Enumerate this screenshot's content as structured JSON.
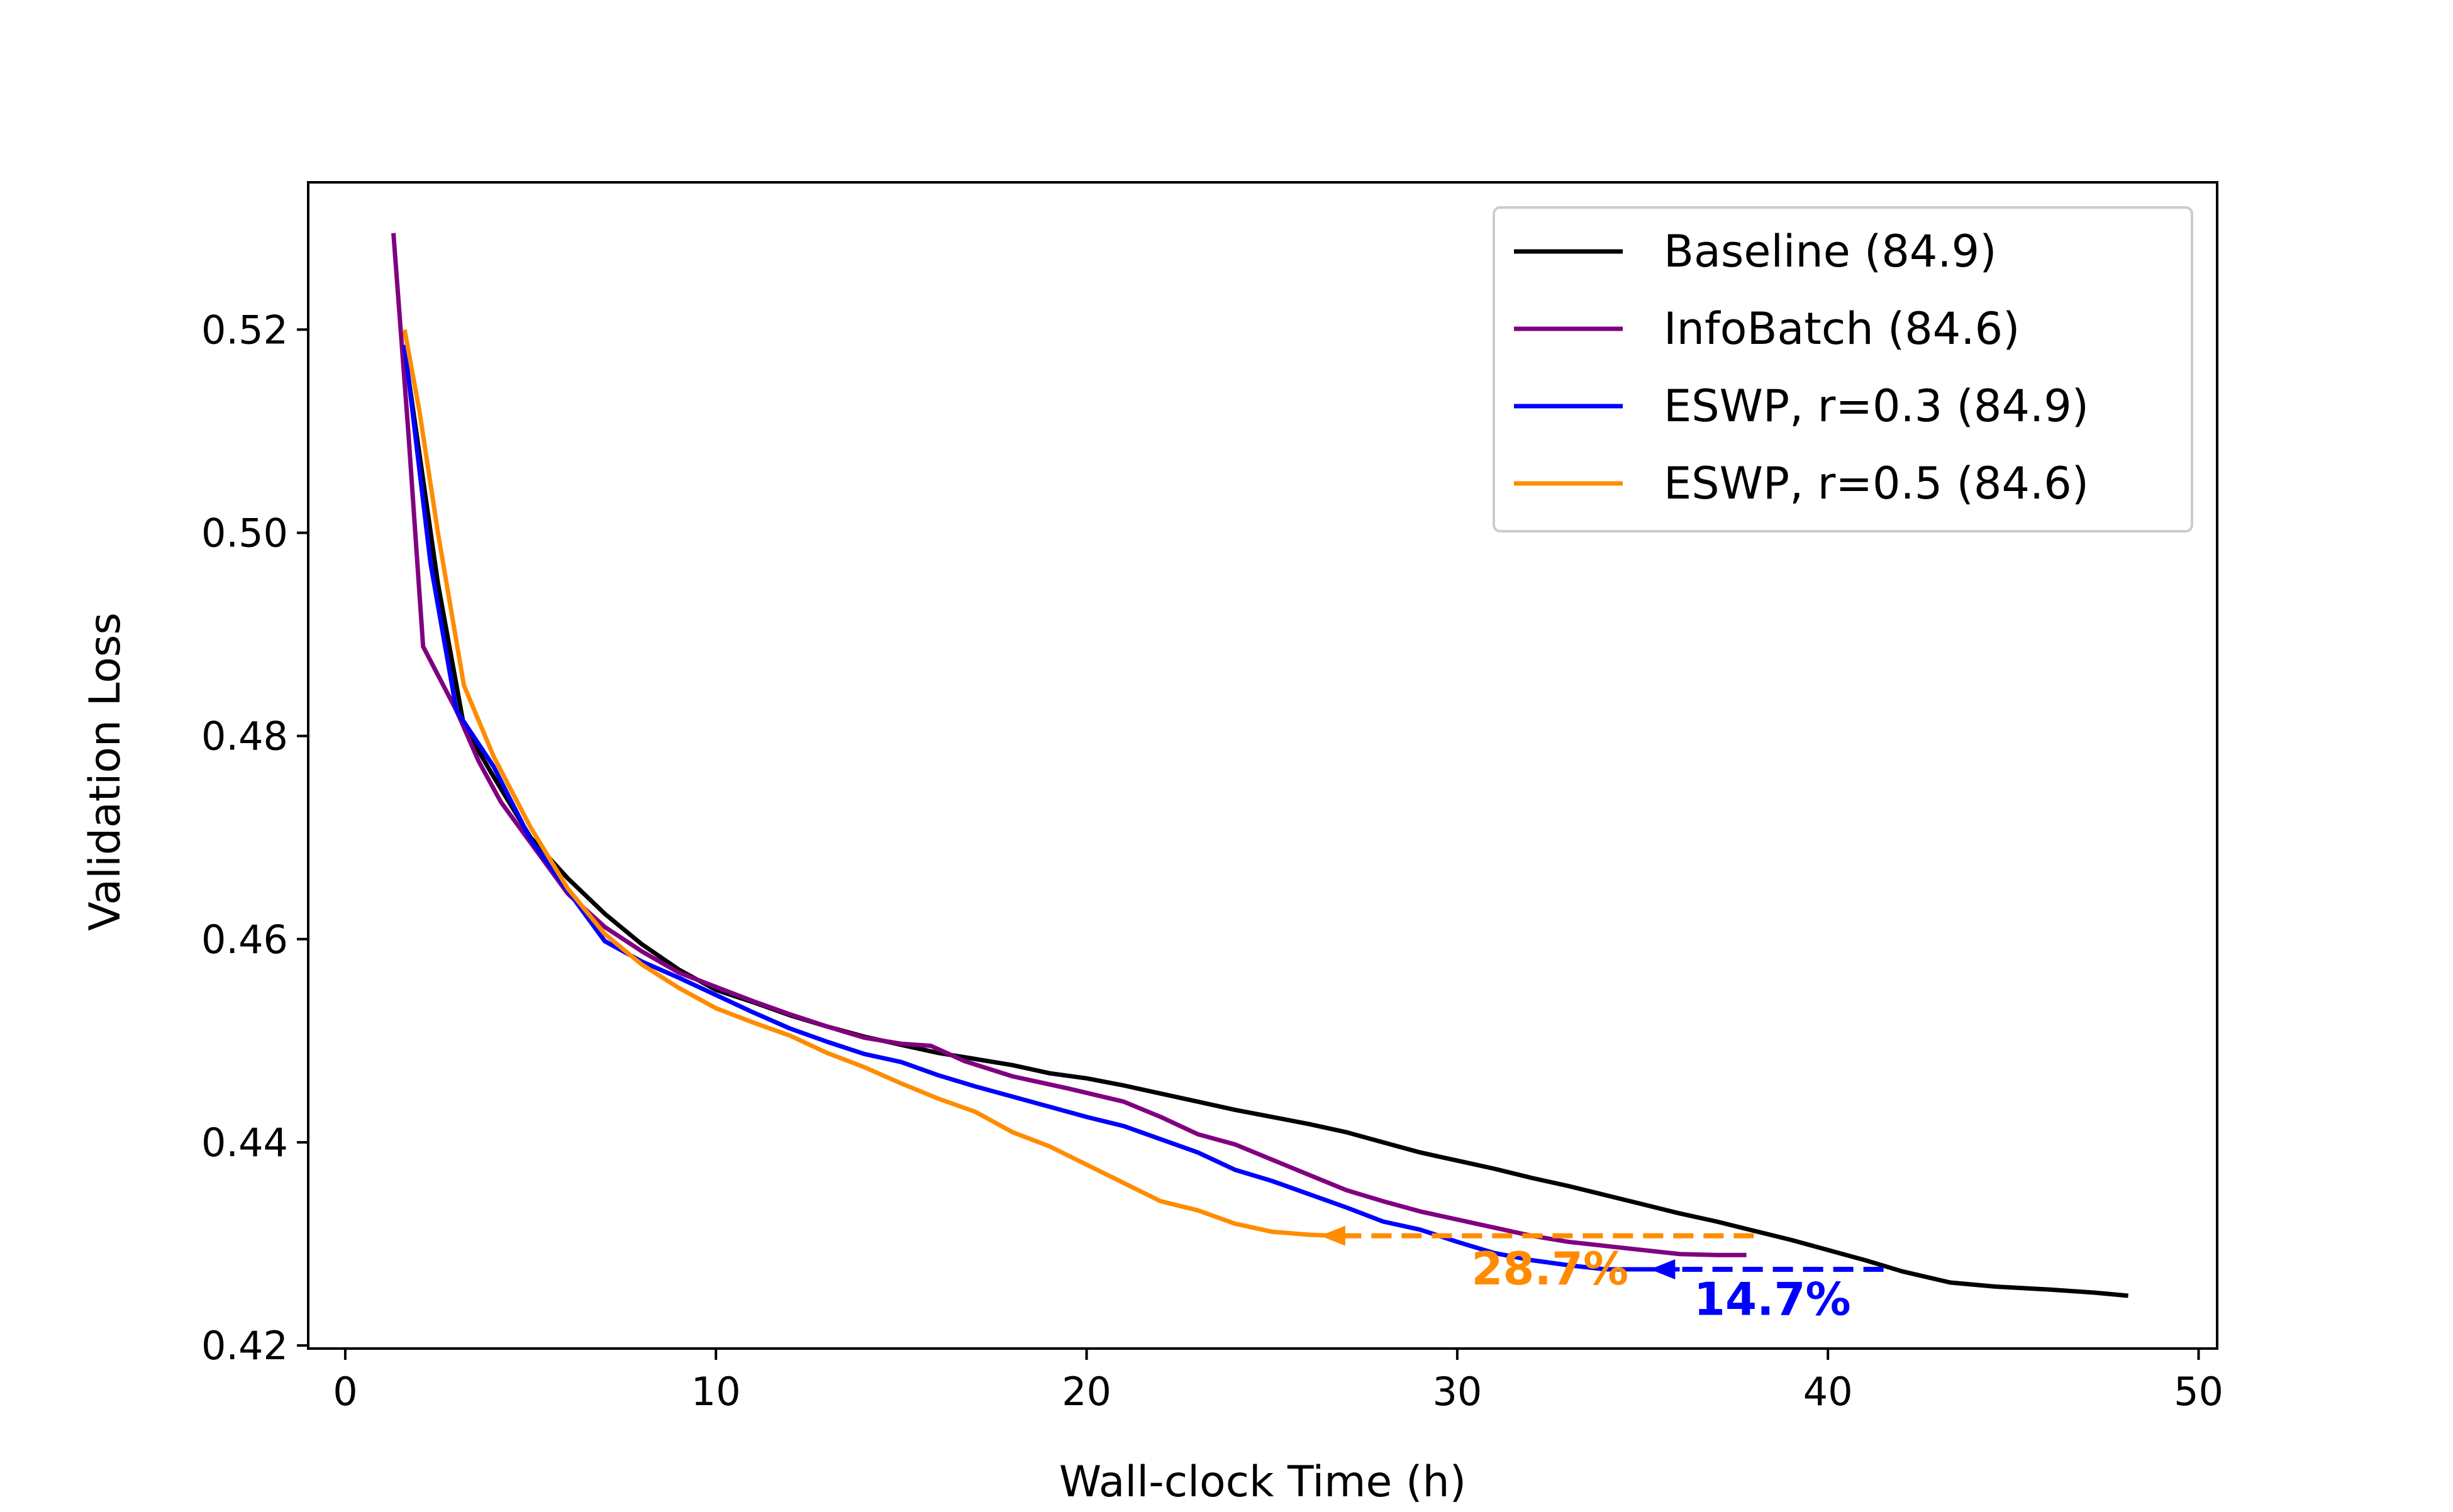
{
  "chart_data": {
    "type": "line",
    "xlabel": "Wall-clock Time (h)",
    "ylabel": "Validation Loss",
    "xlim": [
      -1,
      50.5
    ],
    "ylim": [
      0.4197,
      0.5345
    ],
    "xticks": [
      0,
      10,
      20,
      30,
      40,
      50
    ],
    "yticks": [
      0.42,
      0.44,
      0.46,
      0.48,
      0.5,
      0.52
    ],
    "xtick_labels": [
      "0",
      "10",
      "20",
      "30",
      "40",
      "50"
    ],
    "ytick_labels": [
      "0.42",
      "0.44",
      "0.46",
      "0.48",
      "0.50",
      "0.52"
    ],
    "grid": false,
    "legend_position": "top-right",
    "series": [
      {
        "name": "Baseline (84.9)",
        "color": "#000000",
        "x": [
          1.6,
          2.5,
          3.2,
          4.0,
          5.0,
          6.0,
          7.0,
          8.0,
          9.0,
          10.0,
          11.0,
          12.0,
          13.0,
          14.0,
          15.0,
          16.0,
          17.0,
          18.0,
          19.0,
          20.0,
          21.0,
          22.0,
          23.0,
          24.0,
          25.0,
          26.0,
          27.0,
          28.0,
          29.0,
          30.0,
          31.0,
          32.0,
          33.0,
          34.0,
          35.0,
          36.0,
          37.0,
          38.0,
          39.0,
          40.0,
          41.0,
          42.0,
          43.3,
          44.5,
          46.0,
          47.2,
          48.1
        ],
        "y": [
          0.518,
          0.495,
          0.481,
          0.476,
          0.47,
          0.466,
          0.4625,
          0.4595,
          0.457,
          0.455,
          0.4538,
          0.4525,
          0.4514,
          0.4504,
          0.4496,
          0.4488,
          0.4482,
          0.4476,
          0.4468,
          0.4463,
          0.4456,
          0.4448,
          0.444,
          0.4432,
          0.4425,
          0.4418,
          0.441,
          0.44,
          0.439,
          0.4382,
          0.4374,
          0.4365,
          0.4357,
          0.4348,
          0.4339,
          0.433,
          0.4322,
          0.4313,
          0.4304,
          0.4294,
          0.4284,
          0.4273,
          0.4262,
          0.4258,
          0.4255,
          0.4252,
          0.4249
        ]
      },
      {
        "name": "InfoBatch (84.6)",
        "color": "#800080",
        "x": [
          1.3,
          1.7,
          2.1,
          2.5,
          3.0,
          3.6,
          4.2,
          5.0,
          6.0,
          7.0,
          8.0,
          9.0,
          10.0,
          11.0,
          12.0,
          13.0,
          14.0,
          15.0,
          15.8,
          16.7,
          18.0,
          19.5,
          21.0,
          22.0,
          23.0,
          24.0,
          25.0,
          26.0,
          27.0,
          28.0,
          29.0,
          30.0,
          31.0,
          32.0,
          33.0,
          34.0,
          35.0,
          36.0,
          37.0,
          37.8
        ],
        "y": [
          0.5295,
          0.51,
          0.4888,
          0.486,
          0.4825,
          0.4775,
          0.4735,
          0.4695,
          0.4645,
          0.4612,
          0.4588,
          0.4567,
          0.4553,
          0.4539,
          0.4526,
          0.4514,
          0.4503,
          0.4497,
          0.4495,
          0.448,
          0.4465,
          0.4453,
          0.444,
          0.4425,
          0.4408,
          0.4398,
          0.4383,
          0.4368,
          0.4353,
          0.4342,
          0.4332,
          0.4324,
          0.4316,
          0.4308,
          0.4302,
          0.4298,
          0.4294,
          0.429,
          0.4289,
          0.4289
        ]
      },
      {
        "name": "ESWP, r=0.3 (84.9)",
        "color": "#0000ff",
        "x": [
          1.6,
          2.3,
          3.0,
          4.0,
          5.0,
          6.0,
          7.0,
          8.0,
          9.0,
          10.0,
          11.0,
          12.0,
          13.0,
          14.0,
          15.0,
          16.0,
          17.0,
          18.0,
          19.0,
          20.0,
          21.0,
          22.0,
          23.0,
          24.0,
          25.0,
          26.0,
          27.0,
          28.0,
          29.0,
          30.0,
          31.0,
          32.0,
          33.0,
          34.0,
          35.0,
          36.0
        ],
        "y": [
          0.5185,
          0.497,
          0.4825,
          0.477,
          0.4698,
          0.4648,
          0.4598,
          0.4578,
          0.4562,
          0.4545,
          0.4528,
          0.4512,
          0.4499,
          0.4487,
          0.4479,
          0.4466,
          0.4455,
          0.4445,
          0.4435,
          0.4425,
          0.4416,
          0.4403,
          0.439,
          0.4373,
          0.4362,
          0.4349,
          0.4336,
          0.4322,
          0.4314,
          0.4302,
          0.4291,
          0.4284,
          0.4279,
          0.4275,
          0.4275,
          0.4275
        ]
      },
      {
        "name": "ESWP, r=0.5 (84.6)",
        "color": "#ff8c00",
        "x": [
          1.6,
          2.0,
          2.5,
          3.2,
          4.0,
          5.0,
          6.0,
          7.0,
          8.0,
          9.0,
          10.0,
          11.0,
          12.0,
          13.0,
          14.0,
          15.0,
          16.0,
          17.0,
          18.0,
          19.0,
          20.0,
          21.0,
          22.0,
          23.0,
          24.0,
          25.0,
          26.0,
          26.7
        ],
        "y": [
          0.52,
          0.512,
          0.5,
          0.485,
          0.478,
          0.471,
          0.465,
          0.4605,
          0.4575,
          0.4552,
          0.4532,
          0.4518,
          0.4505,
          0.4488,
          0.4474,
          0.4458,
          0.4443,
          0.443,
          0.441,
          0.4396,
          0.4378,
          0.436,
          0.4342,
          0.4333,
          0.432,
          0.4312,
          0.4309,
          0.4308
        ]
      }
    ],
    "annotations": [
      {
        "text": "28.7%",
        "color": "#ff8c00",
        "arrow_from": [
          38.0,
          0.4308
        ],
        "arrow_to": [
          26.3,
          0.4308
        ],
        "text_pos": [
          32.5,
          0.4275
        ]
      },
      {
        "text": "14.7%",
        "color": "#0000ff",
        "arrow_from": [
          41.5,
          0.4275
        ],
        "arrow_to": [
          35.2,
          0.4275
        ],
        "text_pos": [
          38.5,
          0.4245
        ]
      }
    ]
  }
}
